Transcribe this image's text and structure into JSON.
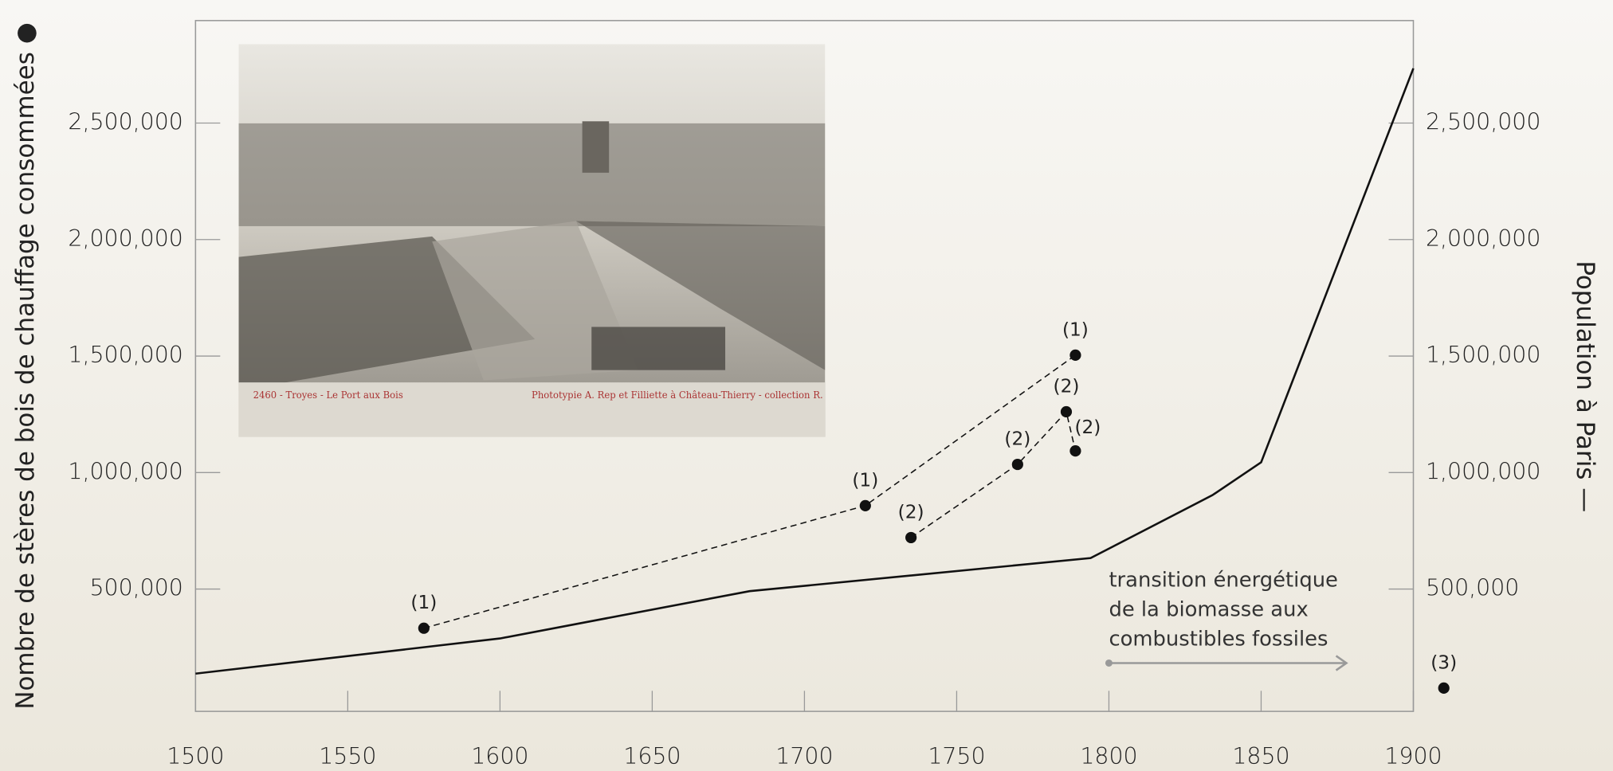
{
  "chart_data": {
    "type": "line",
    "xlim": [
      1500,
      1900
    ],
    "xticks": [
      1500,
      1550,
      1600,
      1650,
      1700,
      1750,
      1800,
      1850,
      1900
    ],
    "ylim": [
      -25000,
      2940000
    ],
    "yticks": [
      {
        "value": 500000,
        "label": "500,000"
      },
      {
        "value": 1000000,
        "label": "1,000,000"
      },
      {
        "value": 1500000,
        "label": "1,500,000"
      },
      {
        "value": 2000000,
        "label": "2,000,000"
      },
      {
        "value": 2500000,
        "label": "2,500,000"
      }
    ],
    "y2lim": [
      -25000,
      2940000
    ],
    "y2ticks": [
      {
        "value": 500000,
        "label": "500,000"
      },
      {
        "value": 1000000,
        "label": "1,000,000"
      },
      {
        "value": 1500000,
        "label": "1,500,000"
      },
      {
        "value": 2000000,
        "label": "2,000,000"
      },
      {
        "value": 2500000,
        "label": "2,500,000"
      }
    ],
    "y_label": "Nombre de stères de bois de chauffage consommées ●",
    "y2_label": "Population à Paris —",
    "series": [
      {
        "type": "line",
        "axis": "y2",
        "color": "#111111",
        "x": [
          1500,
          1600,
          1682,
          1794,
          1834,
          1850,
          1900
        ],
        "values": [
          137000,
          288000,
          491000,
          633000,
          903000,
          1044000,
          2735000
        ]
      },
      {
        "type": "scatter",
        "name": "(1)",
        "color": "#111111",
        "connected": true,
        "x": [
          1575,
          1720,
          1789
        ],
        "values": [
          332000,
          858000,
          1504000
        ]
      },
      {
        "type": "scatter",
        "name": "(2)",
        "color": "#111111",
        "connected": true,
        "x": [
          1735,
          1770,
          1786,
          1789
        ],
        "values": [
          721000,
          1035000,
          1261000,
          1093000
        ]
      },
      {
        "type": "scatter",
        "name": "(3)",
        "color": "#111111",
        "connected": false,
        "x": [
          1910
        ],
        "values": [
          75000
        ]
      }
    ],
    "annotation": {
      "lines": [
        "transition énergétique",
        "de la biomasse aux",
        "combustibles fossiles"
      ],
      "arrow_x": [
        1800,
        1878
      ]
    },
    "photo_caption": [
      "2460 - Troyes - Le Port aux Bois",
      "Phototypie A. Rep et Filliette à Château-Thierry - collection R."
    ]
  }
}
